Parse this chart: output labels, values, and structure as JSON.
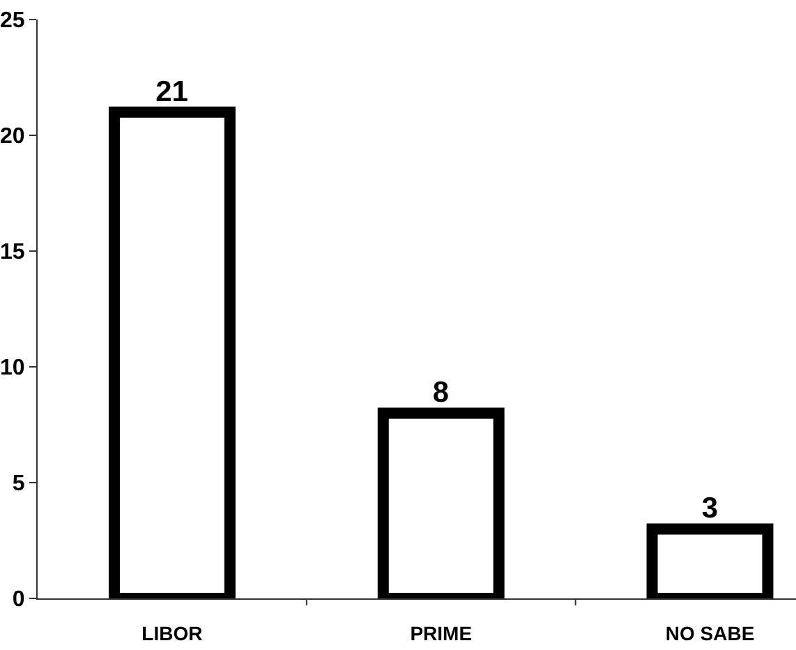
{
  "chart_data": {
    "type": "bar",
    "categories": [
      "LIBOR",
      "PRIME",
      "NO SABE"
    ],
    "values": [
      21,
      8,
      3
    ],
    "color": "#ffffff",
    "ylim": [
      0,
      25
    ],
    "yticks": [
      0,
      5,
      10,
      15,
      20,
      25
    ],
    "data_labels": true,
    "grid": false
  }
}
